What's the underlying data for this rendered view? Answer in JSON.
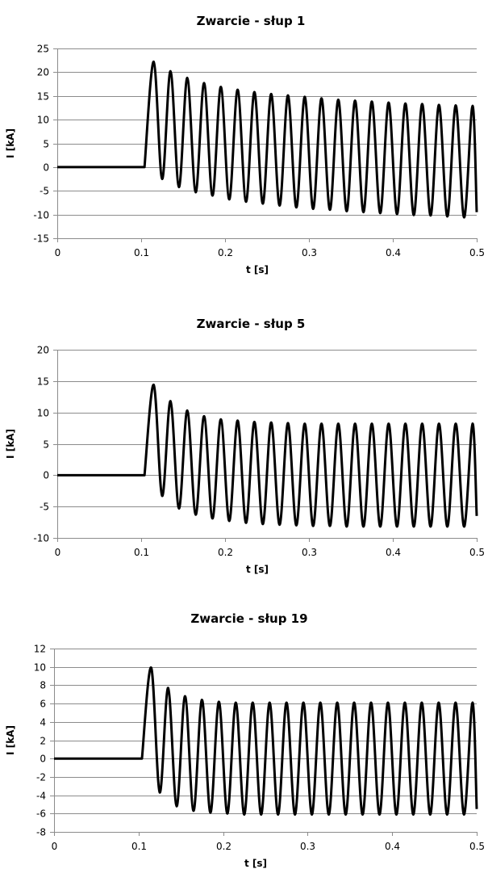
{
  "chart_data": [
    {
      "type": "line",
      "title": "Zwarcie - słup 1",
      "xlabel": "t [s]",
      "ylabel": "I [kA]",
      "xlim": [
        0,
        0.5
      ],
      "ylim": [
        -15,
        25
      ],
      "xticks": [
        0,
        0.1,
        0.2,
        0.3,
        0.4,
        0.5
      ],
      "xtick_labels": [
        "0",
        "0.1",
        "0.2",
        "0.3",
        "0.4",
        "0.5"
      ],
      "yticks": [
        -15,
        -10,
        -5,
        0,
        5,
        10,
        15,
        20,
        25
      ],
      "grid": true,
      "legend": "none",
      "series_color": "#000000",
      "x": [
        0,
        0.104,
        0.115,
        0.125,
        0.135,
        0.145,
        0.155,
        0.165,
        0.175,
        0.185,
        0.195,
        0.205,
        0.215,
        0.225,
        0.235,
        0.245,
        0.255,
        0.265,
        0.275,
        0.285,
        0.295,
        0.305,
        0.315,
        0.325,
        0.335,
        0.345,
        0.355,
        0.365,
        0.375,
        0.385,
        0.395,
        0.405,
        0.415,
        0.425,
        0.435,
        0.445,
        0.455,
        0.465,
        0.475,
        0.485,
        0.495,
        0.5
      ],
      "y": [
        0,
        0,
        22.2,
        -2.5,
        20.2,
        -4.2,
        18.8,
        -5.3,
        17.7,
        -6.0,
        16.9,
        -6.8,
        16.3,
        -7.3,
        15.8,
        -7.7,
        15.4,
        -8.1,
        15.1,
        -8.5,
        14.8,
        -8.8,
        14.5,
        -9.0,
        14.2,
        -9.3,
        14.0,
        -9.5,
        13.8,
        -9.7,
        13.6,
        -9.9,
        13.4,
        -10.1,
        13.3,
        -10.2,
        13.1,
        -10.4,
        13.0,
        -10.6,
        12.9,
        -9.5
      ]
    },
    {
      "type": "line",
      "title": "Zwarcie - słup 5",
      "xlabel": "t [s]",
      "ylabel": "I [kA]",
      "xlim": [
        0,
        0.5
      ],
      "ylim": [
        -10,
        20
      ],
      "xticks": [
        0,
        0.1,
        0.2,
        0.3,
        0.4,
        0.5
      ],
      "xtick_labels": [
        "0",
        "0.1",
        "0.2",
        "0.3",
        "0.4",
        "0.5"
      ],
      "yticks": [
        -10,
        -5,
        0,
        5,
        10,
        15,
        20
      ],
      "grid": true,
      "legend": "none",
      "series_color": "#000000",
      "x": [
        0,
        0.104,
        0.115,
        0.125,
        0.135,
        0.145,
        0.155,
        0.165,
        0.175,
        0.185,
        0.195,
        0.205,
        0.215,
        0.225,
        0.235,
        0.245,
        0.255,
        0.265,
        0.275,
        0.285,
        0.295,
        0.305,
        0.315,
        0.325,
        0.335,
        0.345,
        0.355,
        0.365,
        0.375,
        0.385,
        0.395,
        0.405,
        0.415,
        0.425,
        0.435,
        0.445,
        0.455,
        0.465,
        0.475,
        0.485,
        0.495,
        0.5
      ],
      "y": [
        0,
        0,
        14.4,
        -3.3,
        11.8,
        -5.3,
        10.3,
        -6.3,
        9.4,
        -6.9,
        8.9,
        -7.3,
        8.7,
        -7.6,
        8.5,
        -7.8,
        8.4,
        -7.9,
        8.3,
        -8.0,
        8.2,
        -8.1,
        8.2,
        -8.1,
        8.2,
        -8.2,
        8.2,
        -8.2,
        8.2,
        -8.2,
        8.2,
        -8.2,
        8.2,
        -8.2,
        8.2,
        -8.2,
        8.2,
        -8.2,
        8.2,
        -8.2,
        8.2,
        -6.5
      ]
    },
    {
      "type": "line",
      "title": "Zwarcie - słup 19",
      "xlabel": "t [s]",
      "ylabel": "I [kA]",
      "xlim": [
        0,
        0.5
      ],
      "ylim": [
        -8,
        12
      ],
      "xticks": [
        0,
        0.1,
        0.2,
        0.3,
        0.4,
        0.5
      ],
      "xtick_labels": [
        "0",
        "0.1",
        "0.2",
        "0.3",
        "0.4",
        "0.5"
      ],
      "yticks": [
        -8,
        -6,
        -4,
        -2,
        0,
        2,
        4,
        6,
        8,
        10,
        12
      ],
      "grid": true,
      "legend": "none",
      "series_color": "#000000",
      "x": [
        0,
        0.104,
        0.115,
        0.125,
        0.135,
        0.145,
        0.155,
        0.165,
        0.175,
        0.185,
        0.195,
        0.205,
        0.215,
        0.225,
        0.235,
        0.245,
        0.255,
        0.265,
        0.275,
        0.285,
        0.295,
        0.305,
        0.315,
        0.325,
        0.335,
        0.345,
        0.355,
        0.365,
        0.375,
        0.385,
        0.395,
        0.405,
        0.415,
        0.425,
        0.435,
        0.445,
        0.455,
        0.465,
        0.475,
        0.485,
        0.495,
        0.5
      ],
      "y": [
        0,
        0,
        9.9,
        -3.7,
        7.7,
        -5.2,
        6.8,
        -5.7,
        6.4,
        -5.9,
        6.2,
        -6.0,
        6.1,
        -6.1,
        6.1,
        -6.1,
        6.1,
        -6.1,
        6.1,
        -6.1,
        6.1,
        -6.1,
        6.1,
        -6.1,
        6.1,
        -6.1,
        6.1,
        -6.1,
        6.1,
        -6.1,
        6.1,
        -6.1,
        6.1,
        -6.1,
        6.1,
        -6.1,
        6.1,
        -6.1,
        6.1,
        -6.1,
        6.1,
        -5.5
      ]
    }
  ]
}
